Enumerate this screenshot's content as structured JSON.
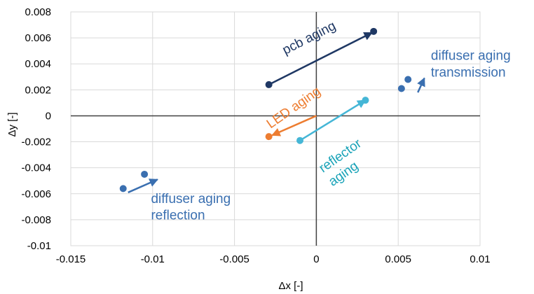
{
  "chart_data": {
    "type": "scatter",
    "title": "",
    "xlabel": "Δx [-]",
    "ylabel": "Δy [-]",
    "xlim": [
      -0.015,
      0.01
    ],
    "ylim": [
      -0.01,
      0.008
    ],
    "xticks": [
      -0.015,
      -0.01,
      -0.005,
      0,
      0.005,
      0.01
    ],
    "xtick_labels": [
      "-0.015",
      "-0.01",
      "-0.005",
      "0",
      "0.005",
      "0.01"
    ],
    "yticks": [
      -0.01,
      -0.008,
      -0.006,
      -0.004,
      -0.002,
      0,
      0.002,
      0.004,
      0.006,
      0.008
    ],
    "ytick_labels": [
      "-0.01",
      "-0.008",
      "-0.006",
      "-0.004",
      "-0.002",
      "0",
      "0.002",
      "0.004",
      "0.006",
      "0.008"
    ],
    "grid": true,
    "legend": "none",
    "series": [
      {
        "color": "#3a6fb0",
        "points": [
          [
            -0.0118,
            -0.0056
          ],
          [
            -0.0105,
            -0.0045
          ],
          [
            0.0052,
            0.0021
          ],
          [
            0.0056,
            0.0028
          ]
        ],
        "arrows": [
          {
            "from": [
              -0.0115,
              -0.0059
            ],
            "to": [
              -0.0097,
              -0.0049
            ]
          },
          {
            "from": [
              0.0062,
              0.0018
            ],
            "to": [
              0.0066,
              0.0029
            ]
          }
        ]
      },
      {
        "color": "#1f3864",
        "points": [
          [
            -0.0029,
            0.0024
          ],
          [
            0.0035,
            0.0065
          ]
        ],
        "arrows": [
          {
            "from": [
              -0.0029,
              0.0024
            ],
            "to": [
              0.0034,
              0.0064
            ]
          }
        ]
      },
      {
        "color": "#ed7d31",
        "points": [
          [
            -0.0029,
            -0.0016
          ]
        ],
        "arrows": [
          {
            "from": [
              0.0,
              0.0
            ],
            "to": [
              -0.0027,
              -0.0015
            ]
          }
        ]
      },
      {
        "color": "#45b6d6",
        "points": [
          [
            -0.001,
            -0.0019
          ],
          [
            0.003,
            0.0012
          ]
        ],
        "arrows": [
          {
            "from": [
              -0.001,
              -0.0019
            ],
            "to": [
              0.003,
              0.0012
            ]
          }
        ]
      }
    ],
    "annotations": [
      {
        "lines": [
          "pcb aging"
        ],
        "color": "#1f3864",
        "x": -0.0019,
        "y": 0.0047,
        "rotate": -27,
        "anchor": "start"
      },
      {
        "lines": [
          "LED aging"
        ],
        "color": "#ed7d31",
        "x": -0.0028,
        "y": -0.001,
        "rotate": -35,
        "anchor": "start"
      },
      {
        "lines": [
          "reflector",
          "aging"
        ],
        "color": "#1aa3b8",
        "x": 0.0004,
        "y": -0.0044,
        "rotate": -35,
        "anchor": "start"
      },
      {
        "lines": [
          "diffuser aging",
          "transmission"
        ],
        "color": "#3a6fb0",
        "x": 0.007,
        "y": 0.0043,
        "rotate": 0,
        "anchor": "start"
      },
      {
        "lines": [
          "diffuser aging",
          "reflection"
        ],
        "color": "#3a6fb0",
        "x": -0.0101,
        "y": -0.0067,
        "rotate": 0,
        "anchor": "start"
      }
    ]
  }
}
